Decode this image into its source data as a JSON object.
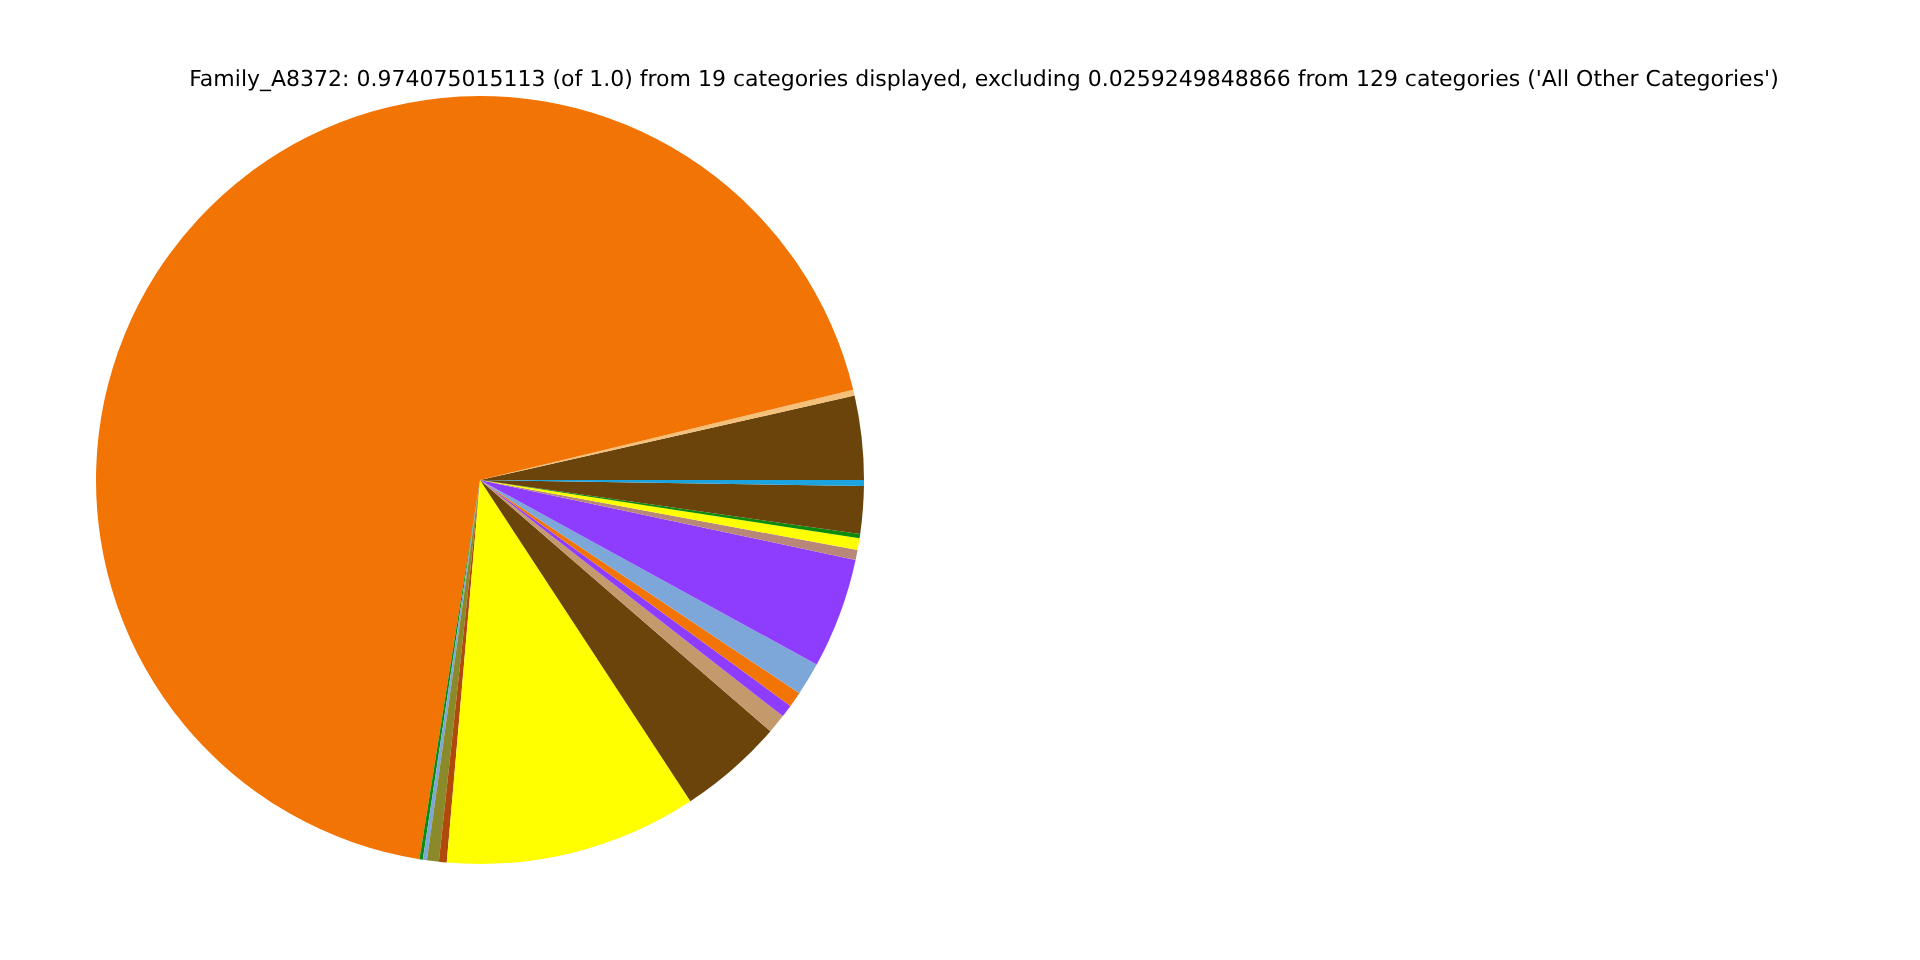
{
  "chart_data": {
    "type": "pie",
    "title": "Family_A8372: 0.974075015113 (of 1.0) from 19 categories displayed, excluding 0.0259249848866 from 129 categories ('All Other Categories')",
    "categories": [
      null,
      null,
      null,
      null,
      null,
      null,
      null,
      null,
      null,
      null,
      null,
      null,
      null,
      null,
      null,
      null,
      null,
      null,
      null
    ],
    "values": [
      3.53,
      0.25,
      68.7,
      0.14,
      0.17,
      0.5,
      0.33,
      10.61,
      4.42,
      0.81,
      0.53,
      0.64,
      1.39,
      4.64,
      0.42,
      0.5,
      0.17,
      2.0,
      0.25
    ],
    "colors": [
      "#6b440b",
      "#f5c07a",
      "#f27405",
      "#0b8a0b",
      "#7da7d8",
      "#8a8a2a",
      "#b04a0a",
      "#ffff00",
      "#6b440b",
      "#c49a6c",
      "#8e3dff",
      "#f27405",
      "#7da7d8",
      "#8e3dff",
      "#b8877a",
      "#ffff00",
      "#0b8a0b",
      "#6b440b",
      "#1ba4e0"
    ],
    "legend": false
  }
}
